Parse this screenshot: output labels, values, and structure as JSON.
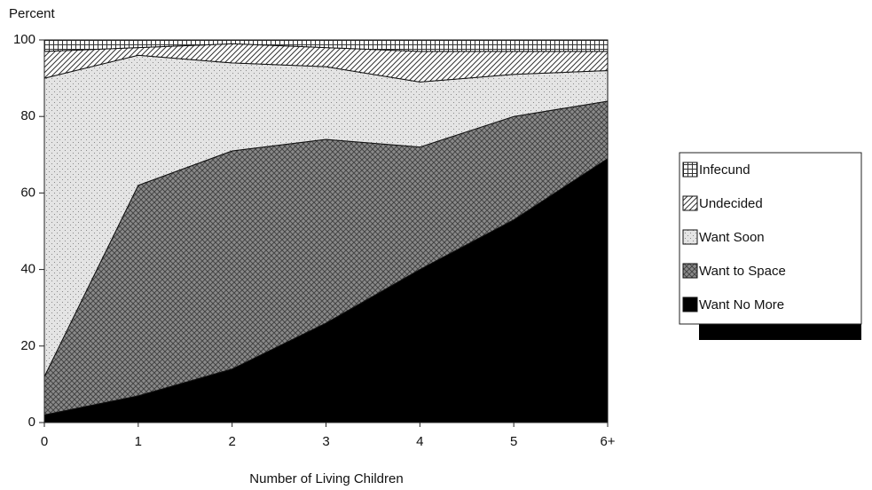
{
  "chart_data": {
    "type": "stacked_area",
    "y_axis_label": "Percent",
    "x_axis_label": "Number of Living Children",
    "categories": [
      "0",
      "1",
      "2",
      "3",
      "4",
      "5",
      "6+"
    ],
    "ylim": [
      0,
      100
    ],
    "yticks": [
      0,
      20,
      40,
      60,
      80,
      100
    ],
    "series": [
      {
        "name": "Want No More",
        "color": "#000000",
        "values": [
          2,
          7,
          14,
          26,
          40,
          53,
          69
        ]
      },
      {
        "name": "Want to Space",
        "color": "#8a8a8a",
        "values": [
          10,
          55,
          57,
          48,
          32,
          27,
          15
        ]
      },
      {
        "name": "Want Soon",
        "color": "#e4e4e4",
        "values": [
          78,
          34,
          23,
          19,
          17,
          11,
          8
        ]
      },
      {
        "name": "Undecided",
        "color": "#c8c8c8",
        "values": [
          7,
          2,
          5,
          5,
          8,
          6,
          5
        ]
      },
      {
        "name": "Infecund",
        "color": "#b0b0b0",
        "values": [
          3,
          2,
          1,
          2,
          3,
          3,
          3
        ]
      }
    ]
  }
}
